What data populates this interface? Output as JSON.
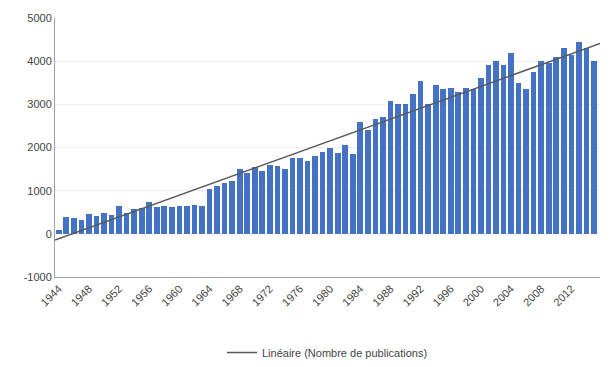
{
  "chart_data": {
    "type": "bar",
    "x": [
      1944,
      1945,
      1946,
      1947,
      1948,
      1949,
      1950,
      1951,
      1952,
      1953,
      1954,
      1955,
      1956,
      1957,
      1958,
      1959,
      1960,
      1961,
      1962,
      1963,
      1964,
      1965,
      1966,
      1967,
      1968,
      1969,
      1970,
      1971,
      1972,
      1973,
      1974,
      1975,
      1976,
      1977,
      1978,
      1979,
      1980,
      1981,
      1982,
      1983,
      1984,
      1985,
      1986,
      1987,
      1988,
      1989,
      1990,
      1991,
      1992,
      1993,
      1994,
      1995,
      1996,
      1997,
      1998,
      1999,
      2000,
      2001,
      2002,
      2003,
      2004,
      2005,
      2006,
      2007,
      2008,
      2009,
      2010,
      2011,
      2012,
      2013,
      2014,
      2015
    ],
    "series": [
      {
        "type": "bar",
        "color": "#4472C4",
        "values": [
          80,
          400,
          360,
          330,
          460,
          420,
          480,
          440,
          640,
          480,
          580,
          590,
          740,
          630,
          640,
          620,
          650,
          640,
          660,
          640,
          1050,
          1100,
          1180,
          1220,
          1500,
          1400,
          1550,
          1450,
          1600,
          1580,
          1500,
          1750,
          1760,
          1680,
          1800,
          1900,
          2000,
          1880,
          2050,
          1860,
          2600,
          2400,
          2650,
          2700,
          3080,
          3000,
          3000,
          3250,
          3550,
          3000,
          3450,
          3350,
          3380,
          3280,
          3380,
          3350,
          3600,
          3900,
          4000,
          3900,
          4200,
          3500,
          3350,
          3750,
          4000,
          3960,
          4100,
          4300,
          4150,
          4450,
          4300,
          4000
        ]
      },
      {
        "type": "line",
        "name": "Linéaire (Nombre de publications)",
        "color": "#595959",
        "x": [
          1943.5,
          2016.5
        ],
        "values": [
          -143.6205,
          4453.8983
        ]
      }
    ],
    "xlim": [
      1943.5,
      2015.8
    ],
    "xticks": [
      1944,
      1948,
      1952,
      1956,
      1960,
      1964,
      1968,
      1972,
      1976,
      1980,
      1984,
      1988,
      1992,
      1996,
      2000,
      2004,
      2008,
      2012
    ],
    "ylim": [
      -1000,
      5000
    ],
    "yticks": [
      -1000,
      0,
      1000,
      2000,
      3000,
      4000,
      5000
    ],
    "grid": "y",
    "legend": "bottom"
  }
}
